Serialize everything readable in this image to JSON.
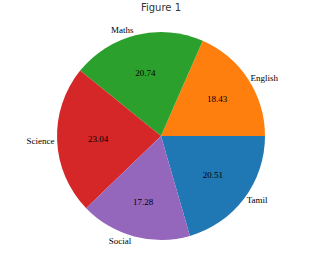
{
  "chart_data": {
    "type": "pie",
    "title": "Figure 1",
    "categories": [
      "Tamil",
      "English",
      "Maths",
      "Science",
      "Social"
    ],
    "values": [
      20.51,
      18.43,
      20.74,
      23.04,
      17.28
    ],
    "colors": [
      "#1f77b4",
      "#ff7f0e",
      "#2ca02c",
      "#d62728",
      "#9467bd"
    ],
    "data_labels": true
  }
}
